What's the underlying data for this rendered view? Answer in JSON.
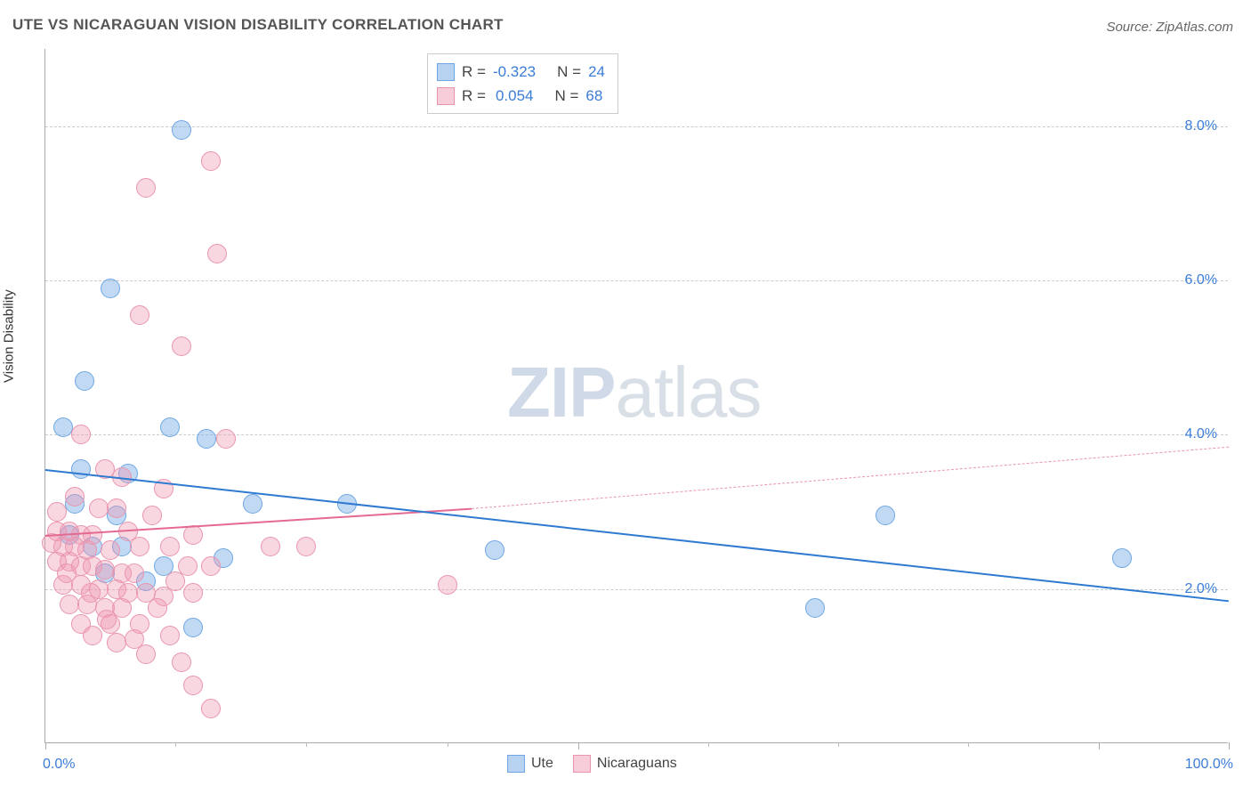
{
  "title": "UTE VS NICARAGUAN VISION DISABILITY CORRELATION CHART",
  "source": "Source: ZipAtlas.com",
  "yaxis_label": "Vision Disability",
  "watermark_zip": "ZIP",
  "watermark_atlas": "atlas",
  "chart": {
    "type": "scatter-correlation",
    "background_color": "#ffffff",
    "grid_color": "#cccccc",
    "axis_color": "#aaaaaa",
    "tick_label_color": "#3b7dd8",
    "title_fontsize": 17,
    "label_fontsize": 15,
    "tick_fontsize": 16,
    "xlim": [
      0,
      100
    ],
    "ylim": [
      0,
      9
    ],
    "y_gridlines": [
      2,
      4,
      6,
      8
    ],
    "ytick_labels": [
      "2.0%",
      "4.0%",
      "6.0%",
      "8.0%"
    ],
    "xtick_major": [
      0,
      45,
      89,
      100
    ],
    "xtick_minor": [
      11,
      22,
      34,
      56,
      67,
      78
    ],
    "xtick_labels": {
      "0": "0.0%",
      "100": "100.0%"
    },
    "marker_radius": 10,
    "marker_border_width": 1.5,
    "series": [
      {
        "name": "Ute",
        "fill_color": "rgba(120,170,230,0.45)",
        "stroke_color": "#6ea7e4",
        "swatch_fill": "#b8d3f1",
        "swatch_border": "#6ea7e4",
        "r_label": "R =",
        "r_value": "-0.323",
        "n_label": "N =",
        "n_value": "24",
        "trend": {
          "x1": 0,
          "y1": 3.55,
          "x2": 100,
          "y2": 1.85,
          "color": "#2f7ad1",
          "width": 2.5,
          "dash": "solid"
        },
        "points": [
          {
            "x": 3.3,
            "y": 4.7
          },
          {
            "x": 1.5,
            "y": 4.1
          },
          {
            "x": 10.5,
            "y": 4.1
          },
          {
            "x": 13.6,
            "y": 3.95
          },
          {
            "x": 2.5,
            "y": 3.1
          },
          {
            "x": 17.5,
            "y": 3.1
          },
          {
            "x": 6.0,
            "y": 2.95
          },
          {
            "x": 15.0,
            "y": 2.4
          },
          {
            "x": 4.0,
            "y": 2.55
          },
          {
            "x": 6.5,
            "y": 2.55
          },
          {
            "x": 10.0,
            "y": 2.3
          },
          {
            "x": 12.5,
            "y": 1.5
          },
          {
            "x": 25.5,
            "y": 3.1
          },
          {
            "x": 38.0,
            "y": 2.5
          },
          {
            "x": 65.0,
            "y": 1.75
          },
          {
            "x": 71.0,
            "y": 2.95
          },
          {
            "x": 91.0,
            "y": 2.4
          },
          {
            "x": 5.5,
            "y": 5.9
          },
          {
            "x": 11.5,
            "y": 7.95
          },
          {
            "x": 3.0,
            "y": 3.55
          },
          {
            "x": 8.5,
            "y": 2.1
          },
          {
            "x": 2.0,
            "y": 2.7
          },
          {
            "x": 5.0,
            "y": 2.2
          },
          {
            "x": 7.0,
            "y": 3.5
          }
        ]
      },
      {
        "name": "Nicaraguans",
        "fill_color": "rgba(240,150,175,0.38)",
        "stroke_color": "#e995ae",
        "swatch_fill": "#f6cdd9",
        "swatch_border": "#e995ae",
        "r_label": "R =",
        "r_value": "0.054",
        "n_label": "N =",
        "n_value": "68",
        "trend_solid": {
          "x1": 0,
          "y1": 2.7,
          "x2": 36,
          "y2": 3.05,
          "color": "#e46a92",
          "width": 2.5,
          "dash": "solid"
        },
        "trend_dash": {
          "x1": 36,
          "y1": 3.05,
          "x2": 100,
          "y2": 3.85,
          "color": "#e995ae",
          "width": 1.5,
          "dash": "dashed"
        },
        "points": [
          {
            "x": 14.0,
            "y": 7.55
          },
          {
            "x": 8.5,
            "y": 7.2
          },
          {
            "x": 14.5,
            "y": 6.35
          },
          {
            "x": 8.0,
            "y": 5.55
          },
          {
            "x": 11.5,
            "y": 5.15
          },
          {
            "x": 15.3,
            "y": 3.95
          },
          {
            "x": 3.0,
            "y": 4.0
          },
          {
            "x": 5.0,
            "y": 3.55
          },
          {
            "x": 6.5,
            "y": 3.45
          },
          {
            "x": 4.5,
            "y": 3.05
          },
          {
            "x": 6.0,
            "y": 3.05
          },
          {
            "x": 10.0,
            "y": 3.3
          },
          {
            "x": 1.0,
            "y": 2.75
          },
          {
            "x": 2.0,
            "y": 2.75
          },
          {
            "x": 3.0,
            "y": 2.7
          },
          {
            "x": 4.0,
            "y": 2.7
          },
          {
            "x": 1.5,
            "y": 2.55
          },
          {
            "x": 2.5,
            "y": 2.55
          },
          {
            "x": 3.5,
            "y": 2.5
          },
          {
            "x": 5.5,
            "y": 2.5
          },
          {
            "x": 8.0,
            "y": 2.55
          },
          {
            "x": 10.5,
            "y": 2.55
          },
          {
            "x": 12.5,
            "y": 2.7
          },
          {
            "x": 19.0,
            "y": 2.55
          },
          {
            "x": 1.0,
            "y": 2.35
          },
          {
            "x": 2.0,
            "y": 2.35
          },
          {
            "x": 3.0,
            "y": 2.3
          },
          {
            "x": 4.0,
            "y": 2.3
          },
          {
            "x": 5.0,
            "y": 2.25
          },
          {
            "x": 6.5,
            "y": 2.2
          },
          {
            "x": 7.5,
            "y": 2.2
          },
          {
            "x": 12.0,
            "y": 2.3
          },
          {
            "x": 14.0,
            "y": 2.3
          },
          {
            "x": 22.0,
            "y": 2.55
          },
          {
            "x": 1.5,
            "y": 2.05
          },
          {
            "x": 3.0,
            "y": 2.05
          },
          {
            "x": 4.5,
            "y": 2.0
          },
          {
            "x": 6.0,
            "y": 2.0
          },
          {
            "x": 7.0,
            "y": 1.95
          },
          {
            "x": 8.5,
            "y": 1.95
          },
          {
            "x": 10.0,
            "y": 1.9
          },
          {
            "x": 12.5,
            "y": 1.95
          },
          {
            "x": 2.0,
            "y": 1.8
          },
          {
            "x": 3.5,
            "y": 1.8
          },
          {
            "x": 5.0,
            "y": 1.75
          },
          {
            "x": 6.5,
            "y": 1.75
          },
          {
            "x": 3.0,
            "y": 1.55
          },
          {
            "x": 5.5,
            "y": 1.55
          },
          {
            "x": 8.0,
            "y": 1.55
          },
          {
            "x": 10.5,
            "y": 1.4
          },
          {
            "x": 6.0,
            "y": 1.3
          },
          {
            "x": 8.5,
            "y": 1.15
          },
          {
            "x": 11.5,
            "y": 1.05
          },
          {
            "x": 12.5,
            "y": 0.75
          },
          {
            "x": 14.0,
            "y": 0.45
          },
          {
            "x": 34.0,
            "y": 2.05
          },
          {
            "x": 4.0,
            "y": 1.4
          },
          {
            "x": 2.5,
            "y": 3.2
          },
          {
            "x": 7.0,
            "y": 2.75
          },
          {
            "x": 9.0,
            "y": 2.95
          },
          {
            "x": 1.0,
            "y": 3.0
          },
          {
            "x": 0.5,
            "y": 2.6
          },
          {
            "x": 1.8,
            "y": 2.2
          },
          {
            "x": 3.8,
            "y": 1.95
          },
          {
            "x": 5.2,
            "y": 1.6
          },
          {
            "x": 9.5,
            "y": 1.75
          },
          {
            "x": 7.5,
            "y": 1.35
          },
          {
            "x": 11.0,
            "y": 2.1
          }
        ]
      }
    ]
  },
  "legend_bottom": [
    {
      "label": "Ute",
      "fill": "#b8d3f1",
      "border": "#6ea7e4"
    },
    {
      "label": "Nicaraguans",
      "fill": "#f6cdd9",
      "border": "#e995ae"
    }
  ]
}
